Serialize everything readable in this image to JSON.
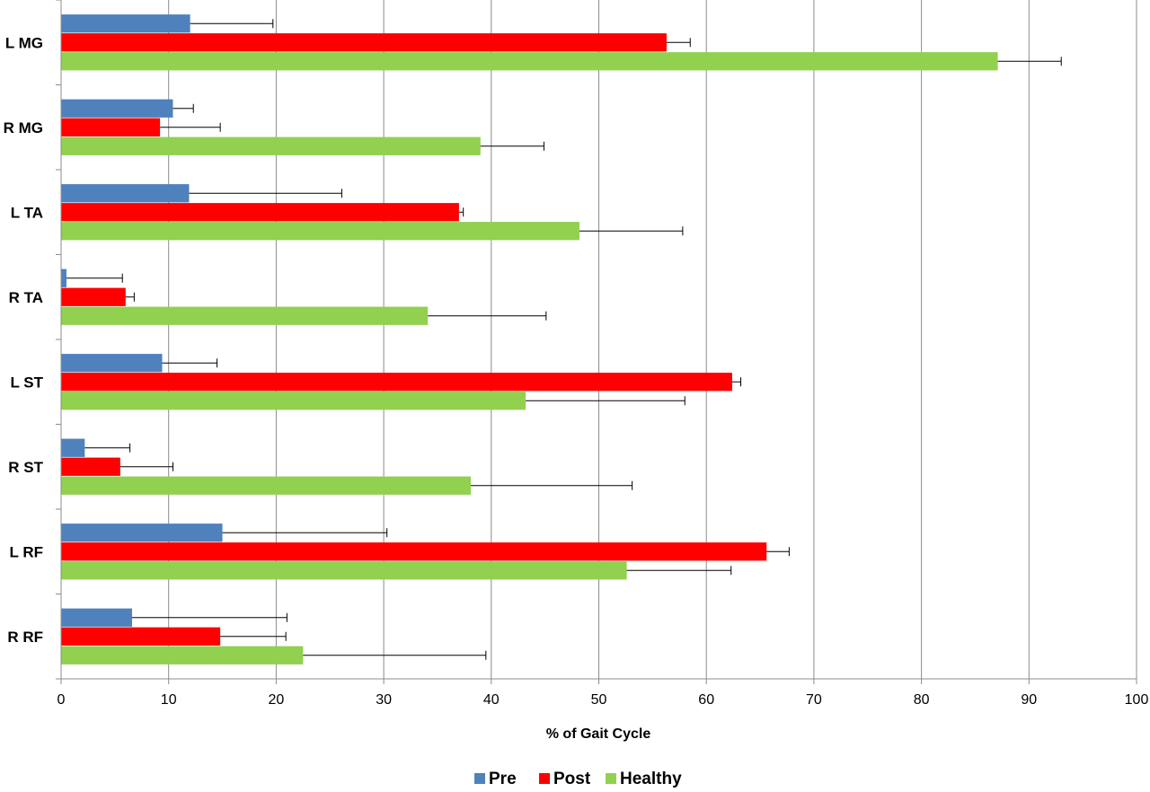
{
  "chart_data": {
    "type": "bar",
    "orientation": "horizontal",
    "title": "",
    "xlabel": "% of Gait Cycle",
    "ylabel": "",
    "xlim": [
      0,
      100
    ],
    "x_ticks": [
      0,
      10,
      20,
      30,
      40,
      50,
      60,
      70,
      80,
      90,
      100
    ],
    "grid": "vertical gridlines on",
    "legend": "bottom",
    "categories": [
      "L MG",
      "R MG",
      "L TA",
      "R TA",
      "L ST",
      "R ST",
      "L RF",
      "R RF"
    ],
    "series": [
      {
        "name": "Pre",
        "color": "#4F81BD",
        "values": [
          12.0,
          10.4,
          11.9,
          0.5,
          9.4,
          2.2,
          15.0,
          6.6
        ],
        "error": [
          7.7,
          1.9,
          14.2,
          5.2,
          5.1,
          4.2,
          15.3,
          14.4
        ]
      },
      {
        "name": "Post",
        "color": "#FF0000",
        "values": [
          56.3,
          9.2,
          37.0,
          6.0,
          62.4,
          5.5,
          65.6,
          14.8
        ],
        "error": [
          2.2,
          5.6,
          0.4,
          0.8,
          0.8,
          4.9,
          2.1,
          6.1
        ]
      },
      {
        "name": "Healthy",
        "color": "#92D050",
        "values": [
          87.1,
          39.0,
          48.2,
          34.1,
          43.2,
          38.1,
          52.6,
          22.5
        ],
        "error": [
          5.9,
          5.9,
          9.6,
          11.0,
          14.8,
          15.0,
          9.7,
          17.0
        ]
      }
    ]
  }
}
